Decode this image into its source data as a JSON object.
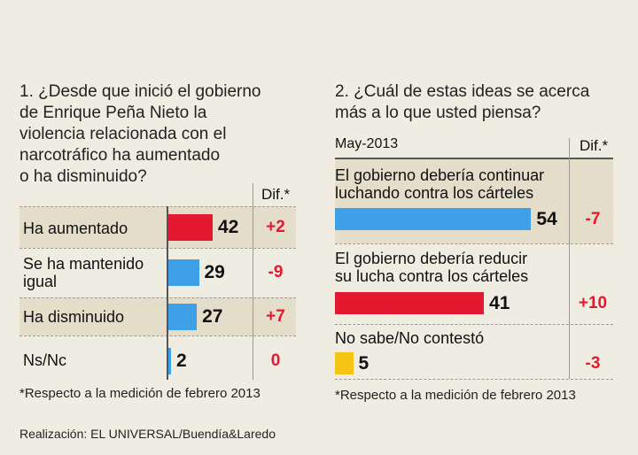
{
  "colors": {
    "red": "#e3192f",
    "blue": "#3ea0e6",
    "yellow": "#f5c414",
    "band": "#e3ddca",
    "dif_text": "#e3192f"
  },
  "chart_data": [
    {
      "type": "bar",
      "orientation": "horizontal",
      "title": "1. ¿Desde que inició el gobierno de Enrique Peña Nieto la violencia relacionada con el narcotráfico ha aumentado o ha disminuido?",
      "title_lines": [
        "1. ¿Desde que inició el gobierno",
        "de Enrique Peña Nieto la",
        "violencia relacionada con el",
        "narcotráfico ha aumentado",
        "o ha disminuido?"
      ],
      "dif_header": "Dif.*",
      "categories": [
        "Ha aumentado",
        "Se ha mantenido igual",
        "Ha disminuido",
        "Ns/Nc"
      ],
      "category_lines": [
        [
          "Ha aumentado"
        ],
        [
          "Se ha mantenido",
          "igual"
        ],
        [
          "Ha disminuido"
        ],
        [
          "Ns/Nc"
        ]
      ],
      "values": [
        42,
        29,
        27,
        2
      ],
      "value_labels": [
        "42",
        "29",
        "27",
        "2"
      ],
      "dif": [
        "+2",
        "-9",
        "+7",
        "0"
      ],
      "bar_colors": [
        "#e3192f",
        "#3ea0e6",
        "#3ea0e6",
        "#3ea0e6"
      ],
      "footnote": "*Respecto a la medición de febrero 2013"
    },
    {
      "type": "bar",
      "orientation": "horizontal",
      "title": "2. ¿Cuál de estas ideas se acerca más a lo que usted piensa?",
      "title_lines": [
        "2. ¿Cuál de estas ideas se acerca",
        "más a lo que usted piensa?"
      ],
      "subtitle": "May-2013",
      "dif_header": "Dif.*",
      "categories": [
        "El gobierno debería continuar luchando contra los cárteles",
        "El gobierno debería reducir su lucha contra los cárteles",
        "No sabe/No contestó"
      ],
      "category_lines": [
        [
          "El gobierno debería continuar",
          "luchando contra los cárteles"
        ],
        [
          "El gobierno debería reducir",
          "su lucha contra los cárteles"
        ],
        [
          "No sabe/No contestó"
        ]
      ],
      "values": [
        54,
        41,
        5
      ],
      "value_labels": [
        "54",
        "41",
        "5"
      ],
      "dif": [
        "-7",
        "+10",
        "-3"
      ],
      "bar_colors": [
        "#3ea0e6",
        "#e3192f",
        "#f5c414"
      ],
      "footnote": "*Respecto a la medición de febrero 2013"
    }
  ],
  "credit": "Realización: EL UNIVERSAL/Buendía&Laredo"
}
